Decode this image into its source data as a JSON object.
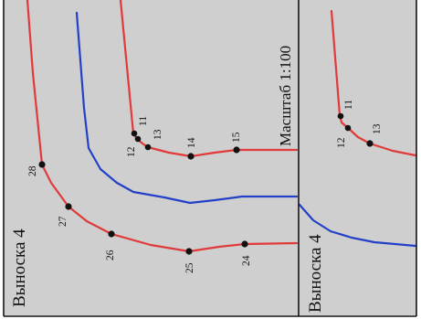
{
  "callouts": {
    "left_title": "Выноска 4",
    "right_title": "Выноска 4",
    "scale_label": "Масштаб 1:100"
  },
  "colors": {
    "boundary_line": "#e03a3a",
    "blue_line": "#2340c8",
    "background": "#cfcfcf"
  },
  "points": {
    "left": [
      "11",
      "12",
      "13",
      "14",
      "15",
      "24",
      "25",
      "26",
      "27",
      "28"
    ],
    "right": [
      "11",
      "12",
      "13"
    ]
  }
}
